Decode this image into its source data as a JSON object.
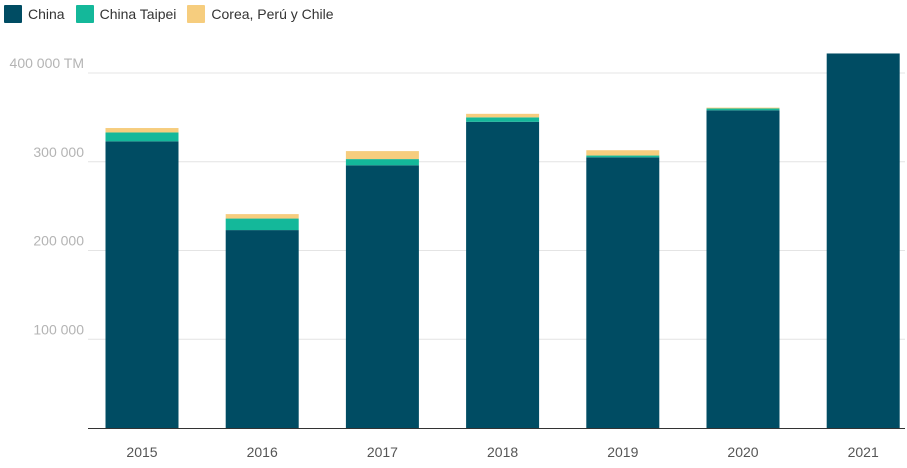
{
  "chart_data": {
    "type": "bar",
    "stacked": true,
    "categories": [
      "2015",
      "2016",
      "2017",
      "2018",
      "2019",
      "2020",
      "2021"
    ],
    "series": [
      {
        "name": "China",
        "color": "#004c63",
        "values": [
          323000,
          223000,
          296000,
          345000,
          305000,
          358000,
          422000
        ]
      },
      {
        "name": "China Taipei",
        "color": "#14b89a",
        "values": [
          10000,
          13000,
          7000,
          5000,
          2000,
          2000,
          0
        ]
      },
      {
        "name": "Corea, Perú y Chile",
        "color": "#f6cd7e",
        "values": [
          5000,
          5000,
          9000,
          4000,
          6000,
          1000,
          0
        ]
      }
    ],
    "yticks": [
      {
        "value": 100000,
        "label": "100 000"
      },
      {
        "value": 200000,
        "label": "200 000"
      },
      {
        "value": 300000,
        "label": "300 000"
      },
      {
        "value": 400000,
        "label": "400 000 TM"
      }
    ],
    "ylim": [
      0,
      420000
    ],
    "grid": true,
    "legend_position": "top-left",
    "title": "",
    "xlabel": "",
    "ylabel": ""
  }
}
